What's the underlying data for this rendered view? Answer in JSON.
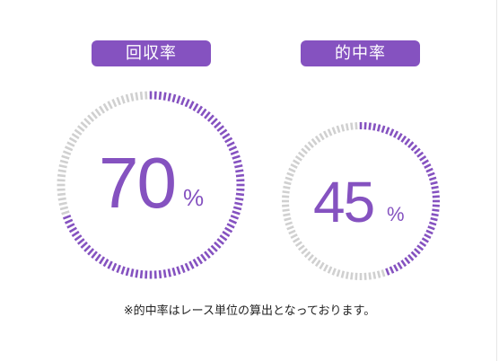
{
  "metrics": [
    {
      "label": "回収率",
      "value": "70",
      "unit": "%",
      "percent": 70
    },
    {
      "label": "的中率",
      "value": "45",
      "unit": "%",
      "percent": 45
    }
  ],
  "note": "※的中率はレース単位の算出となっております。",
  "colors": {
    "accent": "#8552c0",
    "track": "#d0d0d0",
    "badge_text": "#ffffff"
  }
}
